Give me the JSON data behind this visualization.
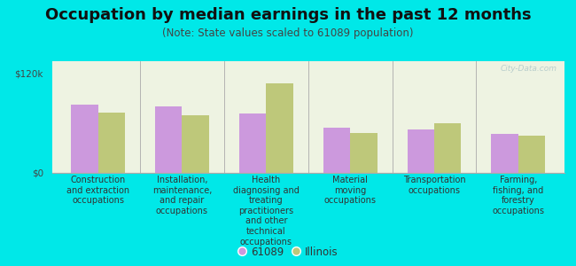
{
  "title": "Occupation by median earnings in the past 12 months",
  "subtitle": "(Note: State values scaled to 61089 population)",
  "background_color": "#00e8e8",
  "plot_bg_color": "#eef3e2",
  "ylabel": "",
  "yticks": [
    0,
    120000
  ],
  "ytick_labels": [
    "$0",
    "$120k"
  ],
  "ylim": [
    0,
    135000
  ],
  "categories": [
    "Construction\nand extraction\noccupations",
    "Installation,\nmaintenance,\nand repair\noccupations",
    "Health\ndiagnosing and\ntreating\npractitioners\nand other\ntechnical\noccupations",
    "Material\nmoving\noccupations",
    "Transportation\noccupations",
    "Farming,\nfishing, and\nforestry\noccupations"
  ],
  "values_61089": [
    82000,
    80000,
    72000,
    55000,
    52000,
    47000
  ],
  "values_illinois": [
    73000,
    70000,
    108000,
    48000,
    60000,
    45000
  ],
  "color_61089": "#cc99dd",
  "color_illinois": "#bec87a",
  "legend_labels": [
    "61089",
    "Illinois"
  ],
  "watermark": "City-Data.com",
  "bar_width": 0.32,
  "title_fontsize": 13,
  "subtitle_fontsize": 8.5,
  "tick_fontsize": 7.5,
  "label_fontsize": 7,
  "legend_fontsize": 8.5
}
